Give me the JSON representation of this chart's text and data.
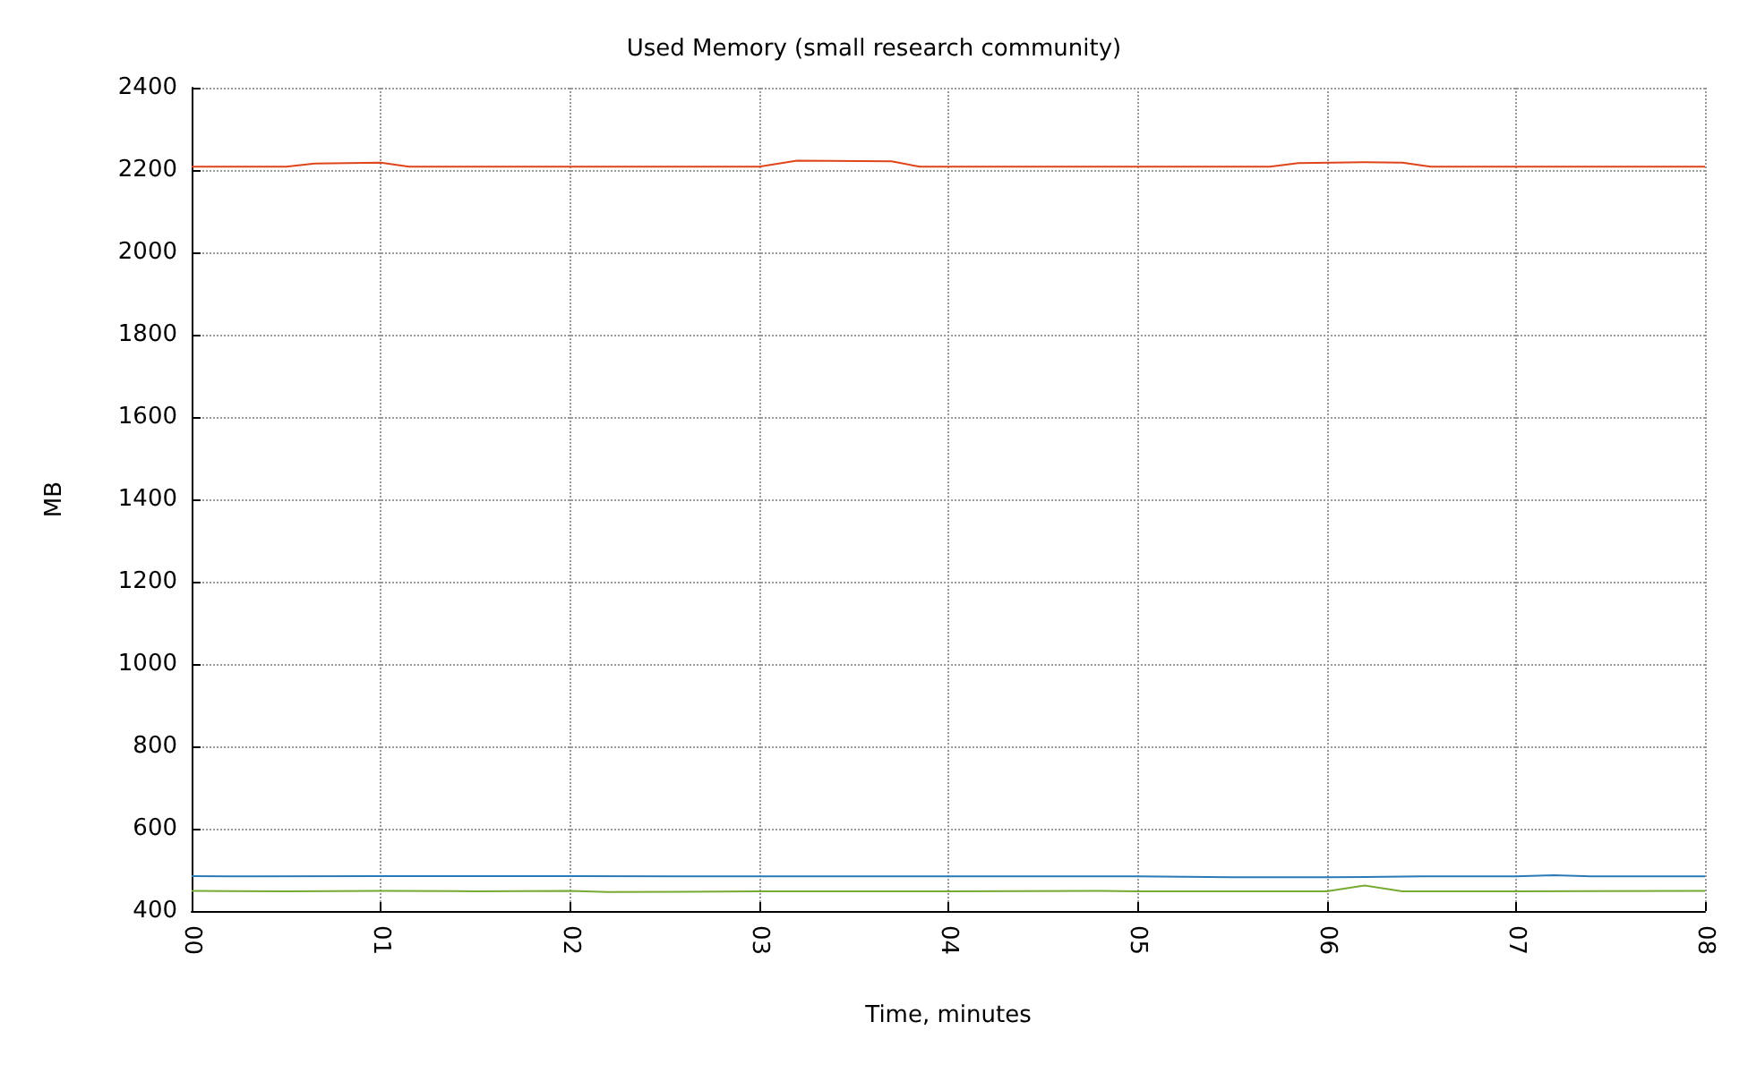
{
  "chart_data": {
    "type": "line",
    "title": "Used Memory (small research community)",
    "xlabel": "Time, minutes",
    "ylabel": "MB",
    "xlim": [
      0,
      8
    ],
    "xticks": [
      {
        "value": 0,
        "label": "00"
      },
      {
        "value": 1,
        "label": "01"
      },
      {
        "value": 2,
        "label": "02"
      },
      {
        "value": 3,
        "label": "03"
      },
      {
        "value": 4,
        "label": "04"
      },
      {
        "value": 5,
        "label": "05"
      },
      {
        "value": 6,
        "label": "06"
      },
      {
        "value": 7,
        "label": "07"
      },
      {
        "value": 8,
        "label": "08"
      }
    ],
    "ylim": [
      400,
      2400
    ],
    "yticks": [
      400,
      600,
      800,
      1000,
      1200,
      1400,
      1600,
      1800,
      2000,
      2200,
      2400
    ],
    "grid": true,
    "marker": "none",
    "line_style": "solid",
    "series": [
      {
        "color": "#77aa33",
        "x": [
          0,
          0.5,
          1,
          1.5,
          2,
          2.2,
          3,
          4,
          4.8,
          5,
          6,
          6.2,
          6.4,
          7,
          8
        ],
        "values": [
          449,
          448,
          449,
          448,
          449,
          446,
          448,
          448,
          449,
          448,
          448,
          462,
          448,
          448,
          449
        ]
      },
      {
        "color": "#e0441a",
        "x": [
          0,
          0.5,
          0.65,
          1,
          1.15,
          2,
          3,
          3.2,
          3.7,
          3.85,
          5,
          5.7,
          5.85,
          6.2,
          6.4,
          6.55,
          7,
          8
        ],
        "values": [
          2208,
          2208,
          2216,
          2218,
          2208,
          2208,
          2208,
          2223,
          2221,
          2208,
          2208,
          2208,
          2217,
          2219,
          2218,
          2208,
          2208,
          2208
        ]
      },
      {
        "color": "#2a7ab8",
        "x": [
          0,
          0.3,
          1,
          2,
          3,
          4,
          5,
          5.5,
          6,
          6.5,
          7,
          7.2,
          7.4,
          8
        ],
        "values": [
          485,
          484,
          485,
          485,
          484,
          484,
          484,
          482,
          482,
          484,
          484,
          487,
          484,
          484
        ]
      }
    ]
  }
}
